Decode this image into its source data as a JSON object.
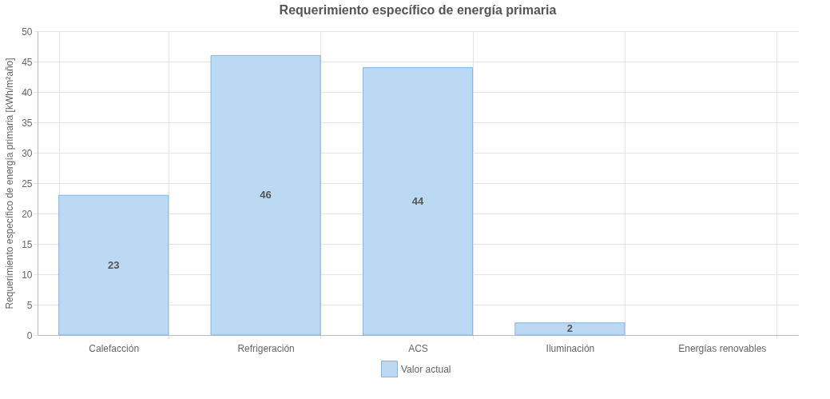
{
  "chart_data": {
    "type": "bar",
    "title": "Requerimiento específico de energía primaria",
    "ylabel": "Requerimiento específico de energía primaria [kWh/m²año]",
    "categories": [
      "Calefacción",
      "Refrigeración",
      "ACS",
      "Iluminación",
      "Energías renovables"
    ],
    "series": [
      {
        "name": "Valor actual",
        "color": "#bcd9f3",
        "values": [
          23,
          46,
          44,
          2,
          null
        ]
      }
    ],
    "ylim": [
      0,
      50
    ],
    "yticks": [
      0,
      5,
      10,
      15,
      20,
      25,
      30,
      35,
      40,
      45,
      50
    ],
    "grid": true,
    "legend": "bottom",
    "data_labels": true
  }
}
